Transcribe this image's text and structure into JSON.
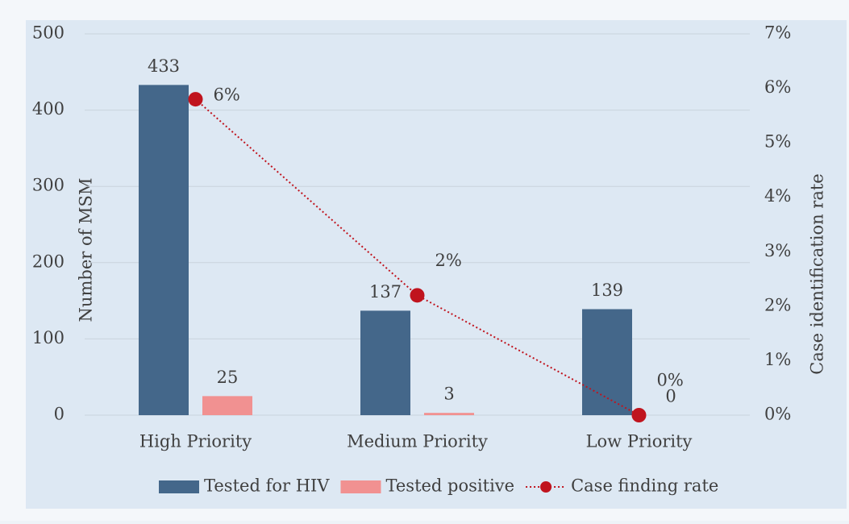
{
  "chart_data": {
    "type": "bar",
    "y_axis_label": "Number of MSM",
    "y2_axis_label": "Case identification rate",
    "categories": [
      "High Priority",
      "Medium Priority",
      "Low Priority"
    ],
    "series": [
      {
        "name": "Tested for HIV",
        "type": "bar",
        "color": "#44678a",
        "values": [
          433,
          137,
          139
        ]
      },
      {
        "name": "Tested positive",
        "type": "bar",
        "color": "#f19191",
        "values": [
          25,
          3,
          0
        ]
      },
      {
        "name": "Case finding rate",
        "type": "line",
        "axis": "y2",
        "color": "#c0141e",
        "values": [
          5.8,
          2.2,
          0
        ],
        "value_labels": [
          "6%",
          "2%",
          "0%"
        ]
      }
    ],
    "ylim": [
      0,
      500
    ],
    "yticks": [
      0,
      100,
      200,
      300,
      400,
      500
    ],
    "y2lim": [
      0,
      7
    ],
    "y2ticks": [
      {
        "value": 0,
        "label": "0%"
      },
      {
        "value": 1,
        "label": "1%"
      },
      {
        "value": 2,
        "label": "2%"
      },
      {
        "value": 3,
        "label": "3%"
      },
      {
        "value": 4,
        "label": "4%"
      },
      {
        "value": 5,
        "label": "5%"
      },
      {
        "value": 6,
        "label": "6%"
      },
      {
        "value": 7,
        "label": "7%"
      }
    ],
    "grid": true,
    "legend": "bottom"
  }
}
